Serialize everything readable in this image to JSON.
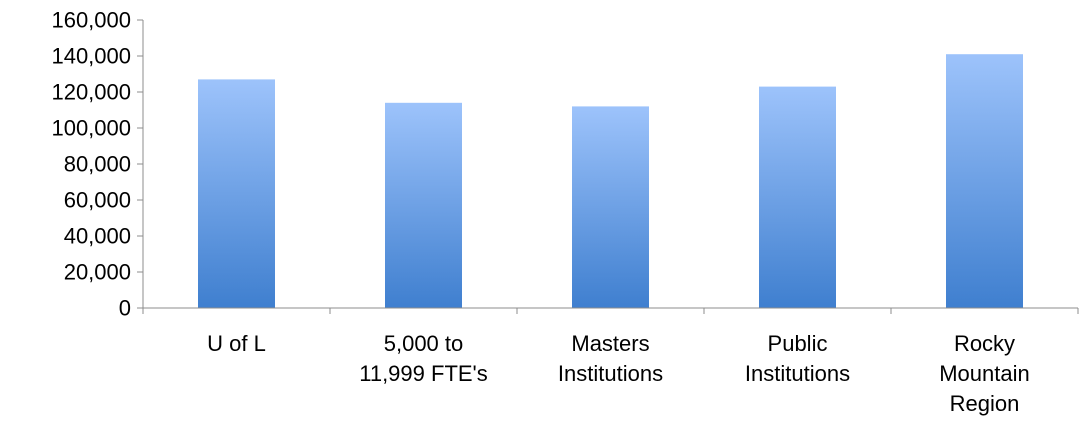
{
  "chart_data": {
    "type": "bar",
    "title": "",
    "xlabel": "",
    "ylabel": "",
    "categories": [
      [
        "U of L"
      ],
      [
        "5,000 to",
        "11,999 FTE's"
      ],
      [
        "Masters",
        "Institutions"
      ],
      [
        "Public",
        "Institutions"
      ],
      [
        "Rocky",
        "Mountain",
        "Region"
      ]
    ],
    "values": [
      127000,
      114000,
      112000,
      123000,
      141000
    ],
    "ylim": [
      0,
      160000
    ],
    "yticks": [
      0,
      20000,
      40000,
      60000,
      80000,
      100000,
      120000,
      140000,
      160000
    ],
    "ytick_labels": [
      "0",
      "20,000",
      "40,000",
      "60,000",
      "80,000",
      "100,000",
      "120,000",
      "140,000",
      "160,000"
    ],
    "grid": false,
    "legend": "none",
    "colors": {
      "bar_top": "#9DC3FB",
      "bar_bottom": "#3F7FCF",
      "axis": "#8C8C8C"
    }
  }
}
